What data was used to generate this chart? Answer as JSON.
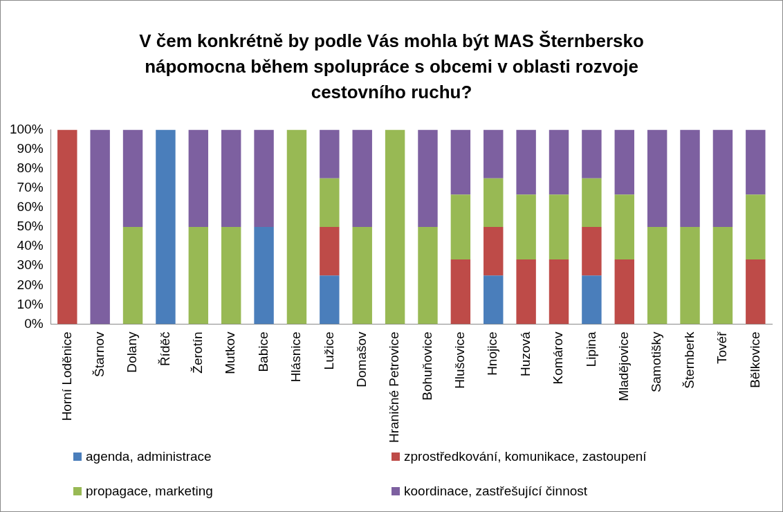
{
  "chart_data": {
    "type": "bar",
    "title": "V čem konkrétně by podle Vás mohla být MAS Šternbersko nápomocna během spolupráce s obcemi v oblasti rozvoje cestovního ruchu?",
    "categories": [
      "Horní Loděnice",
      "Štarnov",
      "Dolany",
      "Říděč",
      "Žerotín",
      "Mutkov",
      "Babice",
      "Hlásnice",
      "Lužice",
      "Domašov",
      "Hraničné Petrovice",
      "Bohuňovice",
      "Hlušovice",
      "Hnojice",
      "Huzová",
      "Komárov",
      "Lipina",
      "Mladějovice",
      "Samotišky",
      "Šternberk",
      "Tovéř",
      "Bělkovice"
    ],
    "stacked": true,
    "series": [
      {
        "name": "agenda, administrace",
        "color": "#4a7ebb",
        "values": [
          0,
          0,
          0,
          100,
          0,
          0,
          50,
          0,
          25,
          0,
          0,
          0,
          0,
          25,
          0,
          0,
          25,
          0,
          0,
          0,
          0,
          0
        ]
      },
      {
        "name": "zprostředkování, komunikace, zastoupení",
        "color": "#be4b48",
        "values": [
          100,
          0,
          0,
          0,
          0,
          0,
          0,
          0,
          25,
          0,
          0,
          0,
          33.3,
          25,
          33.3,
          33.3,
          25,
          33.3,
          0,
          0,
          0,
          33.3
        ]
      },
      {
        "name": "propagace, marketing",
        "color": "#98b954",
        "values": [
          0,
          0,
          50,
          0,
          50,
          50,
          0,
          100,
          25,
          50,
          100,
          50,
          33.3,
          25,
          33.3,
          33.3,
          25,
          33.3,
          50,
          50,
          50,
          33.3
        ]
      },
      {
        "name": "koordinace, zastřešující činnost",
        "color": "#7d60a0",
        "values": [
          0,
          100,
          50,
          0,
          50,
          50,
          50,
          0,
          25,
          50,
          0,
          50,
          33.4,
          25,
          33.4,
          33.4,
          25,
          33.4,
          50,
          50,
          50,
          33.4
        ]
      }
    ],
    "ylim": [
      0,
      100
    ],
    "yticks": [
      {
        "value": 0,
        "label": "0%"
      },
      {
        "value": 10,
        "label": "10%"
      },
      {
        "value": 20,
        "label": "20%"
      },
      {
        "value": 30,
        "label": "30%"
      },
      {
        "value": 40,
        "label": "40%"
      },
      {
        "value": 50,
        "label": "50%"
      },
      {
        "value": 60,
        "label": "60%"
      },
      {
        "value": 70,
        "label": "70%"
      },
      {
        "value": 80,
        "label": "80%"
      },
      {
        "value": 90,
        "label": "90%"
      },
      {
        "value": 100,
        "label": "100%"
      }
    ],
    "grid": false,
    "legend": "bottom"
  }
}
